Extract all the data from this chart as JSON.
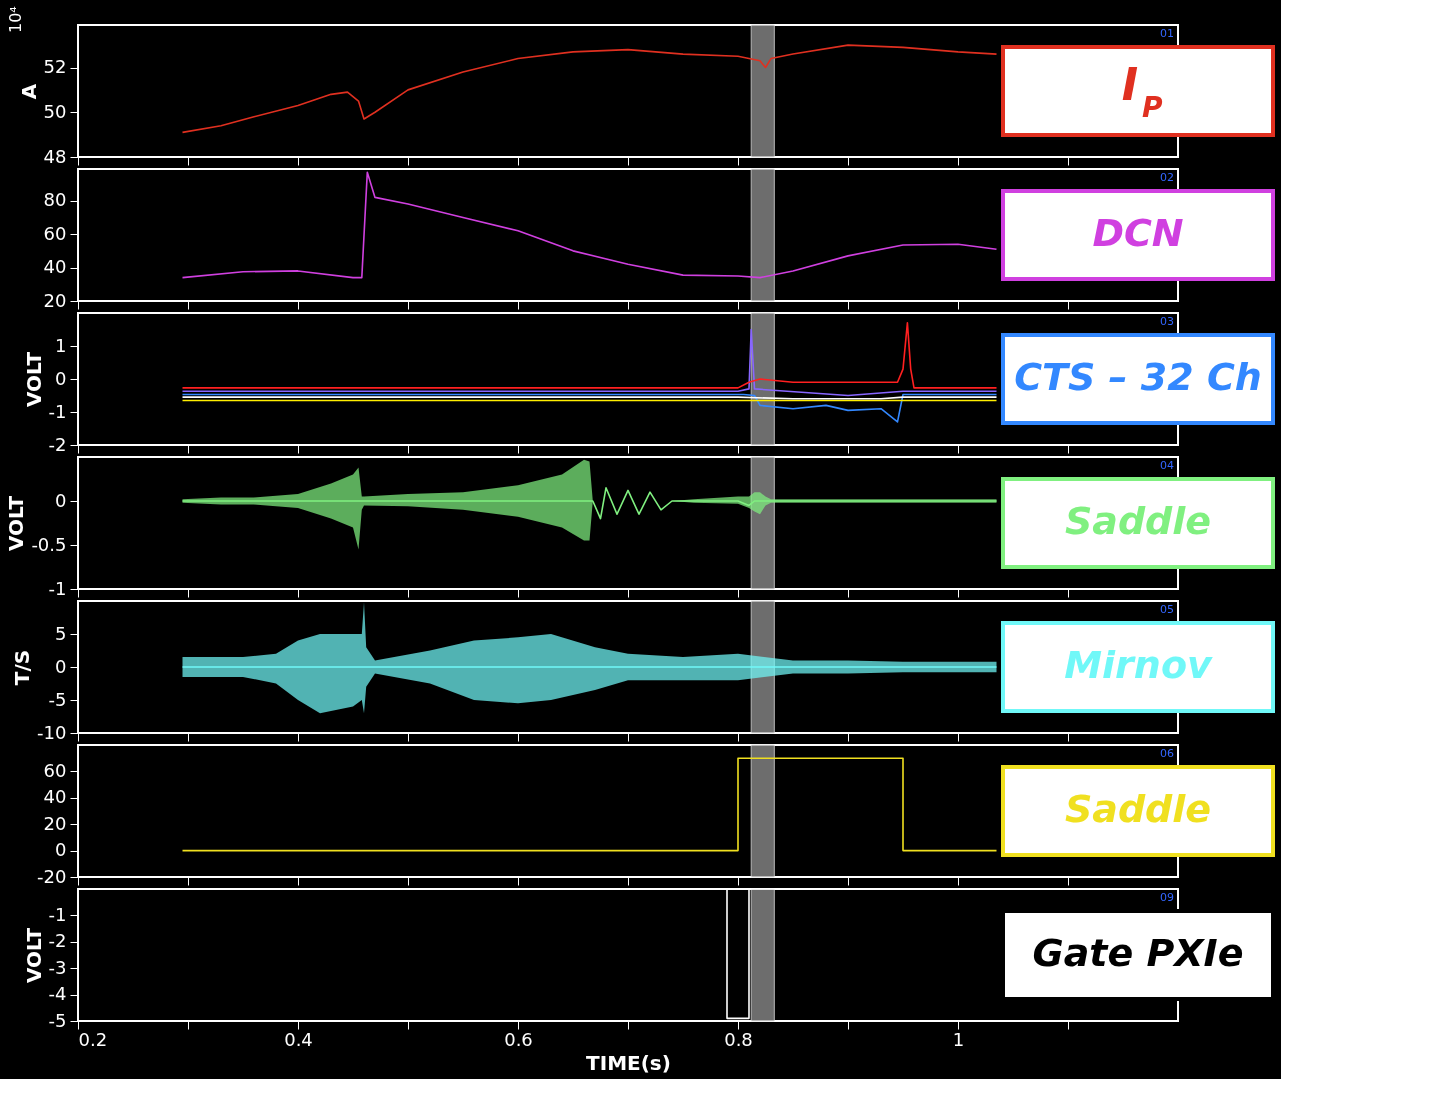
{
  "chart_data": [
    {
      "type": "line",
      "title": "I$_{P}$",
      "ylabel": "A",
      "annotations": [
        "01",
        "10⁴"
      ],
      "xlim": [
        0.2,
        1.2
      ],
      "xticks": [
        0.2,
        {
          "value": 0.3,
          "label": null
        },
        0.4,
        {
          "value": 0.5,
          "label": null
        },
        0.6,
        {
          "value": 0.7,
          "label": null
        },
        0.8,
        {
          "value": 0.9,
          "label": null
        },
        1,
        {
          "value": 1.1,
          "label": null
        }
      ],
      "ylim": [
        48,
        53.9
      ],
      "yticks": [
        48,
        50,
        52
      ],
      "tick_labels": "y",
      "bands": [
        {
          "axis": "x",
          "from": 0.812,
          "to": 0.833,
          "color": "#808080"
        }
      ],
      "series": [
        {
          "color": "#e03020",
          "x": [
            0.295,
            0.33,
            0.36,
            0.4,
            0.43,
            0.445,
            0.455,
            0.46,
            0.47,
            0.5,
            0.55,
            0.6,
            0.65,
            0.7,
            0.75,
            0.8,
            0.82,
            0.825,
            0.83,
            0.85,
            0.9,
            0.95,
            1.0,
            1.035
          ],
          "values": [
            49.1,
            49.4,
            49.8,
            50.3,
            50.8,
            50.9,
            50.5,
            49.7,
            50.0,
            51.0,
            51.8,
            52.4,
            52.7,
            52.8,
            52.6,
            52.5,
            52.3,
            52.0,
            52.4,
            52.6,
            53.0,
            52.9,
            52.7,
            52.6
          ]
        }
      ]
    },
    {
      "type": "line",
      "title": "DCN",
      "annotations": [
        "02"
      ],
      "xlim": [
        0.2,
        1.2
      ],
      "xticks": [
        0.2,
        {
          "value": 0.3,
          "label": null
        },
        0.4,
        {
          "value": 0.5,
          "label": null
        },
        0.6,
        {
          "value": 0.7,
          "label": null
        },
        0.8,
        {
          "value": 0.9,
          "label": null
        },
        1,
        {
          "value": 1.1,
          "label": null
        }
      ],
      "ylim": [
        20,
        99
      ],
      "yticks": [
        20,
        40,
        60,
        80
      ],
      "tick_labels": "y",
      "bands": [
        {
          "axis": "x",
          "from": 0.812,
          "to": 0.833,
          "color": "#808080"
        }
      ],
      "series": [
        {
          "color": "#d040e0",
          "x": [
            0.295,
            0.35,
            0.4,
            0.45,
            0.458,
            0.463,
            0.47,
            0.5,
            0.55,
            0.6,
            0.65,
            0.7,
            0.75,
            0.8,
            0.82,
            0.85,
            0.9,
            0.95,
            1.0,
            1.035
          ],
          "values": [
            34,
            37.5,
            38,
            34,
            34,
            97,
            82,
            78,
            70,
            62,
            50,
            42,
            35.5,
            35,
            34,
            38,
            47,
            53.5,
            54,
            51
          ]
        }
      ]
    },
    {
      "type": "line",
      "title": "CTS – 32 Ch",
      "ylabel": "VOLT",
      "annotations": [
        "03"
      ],
      "xlim": [
        0.2,
        1.2
      ],
      "xticks": [
        0.2,
        {
          "value": 0.3,
          "label": null
        },
        0.4,
        {
          "value": 0.5,
          "label": null
        },
        0.6,
        {
          "value": 0.7,
          "label": null
        },
        0.8,
        {
          "value": 0.9,
          "label": null
        },
        1,
        {
          "value": 1.1,
          "label": null
        }
      ],
      "ylim": [
        -2,
        2
      ],
      "yticks": [
        -2,
        -1,
        0,
        1
      ],
      "tick_labels": "y",
      "bands": [
        {
          "axis": "x",
          "from": 0.812,
          "to": 0.833,
          "color": "#808080"
        }
      ],
      "series": [
        {
          "color": "#3388ff",
          "x": [
            0.295,
            0.4,
            0.5,
            0.6,
            0.7,
            0.78,
            0.805,
            0.815,
            0.82,
            0.85,
            0.88,
            0.9,
            0.93,
            0.945,
            0.95,
            1.0,
            1.035
          ],
          "values": [
            -0.47,
            -0.47,
            -0.47,
            -0.47,
            -0.47,
            -0.47,
            -0.47,
            -0.5,
            -0.8,
            -0.9,
            -0.8,
            -0.95,
            -0.9,
            -1.3,
            -0.47,
            -0.47,
            -0.47
          ]
        },
        {
          "color": "#ffee00",
          "x": [
            0.295,
            1.035
          ],
          "values": [
            -0.65,
            -0.65
          ]
        },
        {
          "color": "#ffffff",
          "x": [
            0.295,
            0.8,
            0.85,
            0.93,
            0.95,
            1.035
          ],
          "values": [
            -0.55,
            -0.55,
            -0.6,
            -0.6,
            -0.55,
            -0.55
          ]
        },
        {
          "color": "#8866ff",
          "x": [
            0.295,
            0.8,
            0.81,
            0.812,
            0.815,
            0.9,
            0.95,
            1.035
          ],
          "values": [
            -0.37,
            -0.37,
            -0.3,
            1.5,
            -0.3,
            -0.5,
            -0.37,
            -0.37
          ]
        },
        {
          "color": "#ff2020",
          "x": [
            0.295,
            0.8,
            0.81,
            0.82,
            0.85,
            0.9,
            0.945,
            0.95,
            0.954,
            0.957,
            0.96,
            1.035
          ],
          "values": [
            -0.27,
            -0.27,
            -0.1,
            0,
            -0.1,
            -0.1,
            -0.1,
            0.3,
            1.7,
            0.3,
            -0.27,
            -0.27
          ]
        }
      ]
    },
    {
      "type": "line",
      "title": "Saddle",
      "ylabel": "VOLT",
      "annotations": [
        "04"
      ],
      "xlim": [
        0.2,
        1.2
      ],
      "xticks": [
        0.2,
        {
          "value": 0.3,
          "label": null
        },
        0.4,
        {
          "value": 0.5,
          "label": null
        },
        0.6,
        {
          "value": 0.7,
          "label": null
        },
        0.8,
        {
          "value": 0.9,
          "label": null
        },
        1,
        {
          "value": 1.1,
          "label": null
        }
      ],
      "ylim": [
        -1,
        0.5
      ],
      "yticks": [
        -1,
        -0.5,
        0
      ],
      "tick_labels": "y",
      "bands": [
        {
          "axis": "x",
          "from": 0.812,
          "to": 0.833,
          "color": "#808080"
        }
      ],
      "series": [
        {
          "color": "#80f080",
          "x": [
            0.295,
            0.33,
            0.36,
            0.4,
            0.43,
            0.45,
            0.455,
            0.458,
            0.46,
            0.5,
            0.55,
            0.6,
            0.64,
            0.66,
            0.665,
            0.668,
            0.675,
            0.68,
            0.69,
            0.7,
            0.71,
            0.72,
            0.73,
            0.74,
            0.76,
            0.8,
            0.81,
            0.815,
            0.82,
            0.825,
            0.83,
            0.85,
            0.9,
            0.95,
            1.0,
            1.035
          ],
          "values": [
            0,
            0,
            0,
            0,
            0,
            0,
            0,
            0,
            0,
            0,
            0,
            0,
            0,
            0,
            0,
            0,
            -0.2,
            0.15,
            -0.15,
            0.12,
            -0.15,
            0.1,
            -0.1,
            0,
            0,
            0,
            -0.05,
            0,
            0,
            0,
            0,
            0,
            0,
            0,
            0,
            0
          ],
          "lower": [
            -0.02,
            -0.04,
            -0.04,
            -0.08,
            -0.2,
            -0.3,
            -0.55,
            -0.1,
            -0.05,
            -0.06,
            -0.1,
            -0.18,
            -0.3,
            -0.45,
            -0.45,
            0,
            -0.2,
            0.15,
            -0.15,
            0.12,
            -0.15,
            0.1,
            -0.1,
            0,
            -0.02,
            -0.03,
            -0.08,
            -0.12,
            -0.15,
            -0.05,
            -0.02,
            -0.02,
            -0.02,
            -0.02,
            -0.02,
            -0.02
          ],
          "upper": [
            0.02,
            0.04,
            0.04,
            0.08,
            0.2,
            0.3,
            0.38,
            0.05,
            0.05,
            0.08,
            0.1,
            0.18,
            0.3,
            0.47,
            0.45,
            0,
            -0.2,
            0.15,
            -0.15,
            0.12,
            -0.15,
            0.1,
            -0.1,
            0,
            0.02,
            0.05,
            0.05,
            0.1,
            0.1,
            0.05,
            0.02,
            0.02,
            0.02,
            0.02,
            0.02,
            0.02
          ]
        }
      ]
    },
    {
      "type": "line",
      "title": "Mirnov",
      "ylabel": "T/S",
      "annotations": [
        "05"
      ],
      "xlim": [
        0.2,
        1.2
      ],
      "xticks": [
        0.2,
        {
          "value": 0.3,
          "label": null
        },
        0.4,
        {
          "value": 0.5,
          "label": null
        },
        0.6,
        {
          "value": 0.7,
          "label": null
        },
        0.8,
        {
          "value": 0.9,
          "label": null
        },
        1,
        {
          "value": 1.1,
          "label": null
        }
      ],
      "ylim": [
        -10,
        10
      ],
      "yticks": [
        -10,
        -5,
        0,
        5
      ],
      "tick_labels": "y",
      "bands": [
        {
          "axis": "x",
          "from": 0.812,
          "to": 0.833,
          "color": "#808080"
        }
      ],
      "series": [
        {
          "color": "#70f8f8",
          "x": [
            0.295,
            0.35,
            0.38,
            0.4,
            0.42,
            0.45,
            0.458,
            0.46,
            0.462,
            0.47,
            0.52,
            0.56,
            0.6,
            0.63,
            0.67,
            0.7,
            0.75,
            0.8,
            0.85,
            0.9,
            0.95,
            1.0,
            1.035
          ],
          "values": [
            0,
            0,
            0,
            0,
            0,
            0,
            0,
            0,
            0,
            0,
            0,
            0,
            0,
            0,
            0,
            0,
            0,
            0,
            0,
            0,
            0,
            0,
            0
          ],
          "lower": [
            -1.5,
            -1.5,
            -2.5,
            -5,
            -7,
            -6,
            -5,
            -7,
            -3,
            -1,
            -2.5,
            -5,
            -5.5,
            -5,
            -3.5,
            -2,
            -2,
            -2,
            -1,
            -1,
            -0.8,
            -0.8,
            -0.8
          ],
          "upper": [
            1.5,
            1.5,
            2,
            4,
            5,
            5,
            5,
            9.8,
            3,
            1,
            2.5,
            4,
            4.5,
            5,
            3,
            2,
            1.5,
            2,
            1,
            1,
            0.8,
            0.8,
            0.8
          ]
        }
      ]
    },
    {
      "type": "line",
      "title": "Saddle",
      "annotations": [
        "06"
      ],
      "xlim": [
        0.2,
        1.2
      ],
      "xticks": [
        0.2,
        {
          "value": 0.3,
          "label": null
        },
        0.4,
        {
          "value": 0.5,
          "label": null
        },
        0.6,
        {
          "value": 0.7,
          "label": null
        },
        0.8,
        {
          "value": 0.9,
          "label": null
        },
        1,
        {
          "value": 1.1,
          "label": null
        }
      ],
      "ylim": [
        -20,
        80
      ],
      "yticks": [
        -20,
        0,
        20,
        40,
        60
      ],
      "tick_labels": "y",
      "bands": [
        {
          "axis": "x",
          "from": 0.812,
          "to": 0.833,
          "color": "#808080"
        }
      ],
      "series": [
        {
          "color": "#f0e020",
          "x": [
            0.295,
            0.8,
            0.8,
            0.95,
            0.95,
            1.035
          ],
          "values": [
            0,
            0,
            70,
            70,
            0,
            0
          ]
        }
      ]
    },
    {
      "type": "line",
      "title": "Gate PXIe",
      "ylabel": "VOLT",
      "xlabel": "TIME(s)",
      "annotations": [
        "09"
      ],
      "xlim": [
        0.2,
        1.2
      ],
      "xticks": [
        0.2,
        {
          "value": 0.3,
          "label": null
        },
        0.4,
        {
          "value": 0.5,
          "label": null
        },
        0.6,
        {
          "value": 0.7,
          "label": null
        },
        0.8,
        {
          "value": 0.9,
          "label": null
        },
        1,
        {
          "value": 1.1,
          "label": null
        }
      ],
      "ylim": [
        -5,
        0
      ],
      "yticks": [
        -5,
        -4,
        -3,
        -2,
        -1
      ],
      "bands": [
        {
          "axis": "x",
          "from": 0.812,
          "to": 0.833,
          "color": "#808080"
        }
      ],
      "series": [
        {
          "color": "#ffffff",
          "x": [
            0.2,
            0.79,
            0.79,
            0.81,
            0.81,
            1.035
          ],
          "values": [
            0,
            0,
            -4.9,
            -4.9,
            0,
            0
          ]
        }
      ]
    }
  ]
}
